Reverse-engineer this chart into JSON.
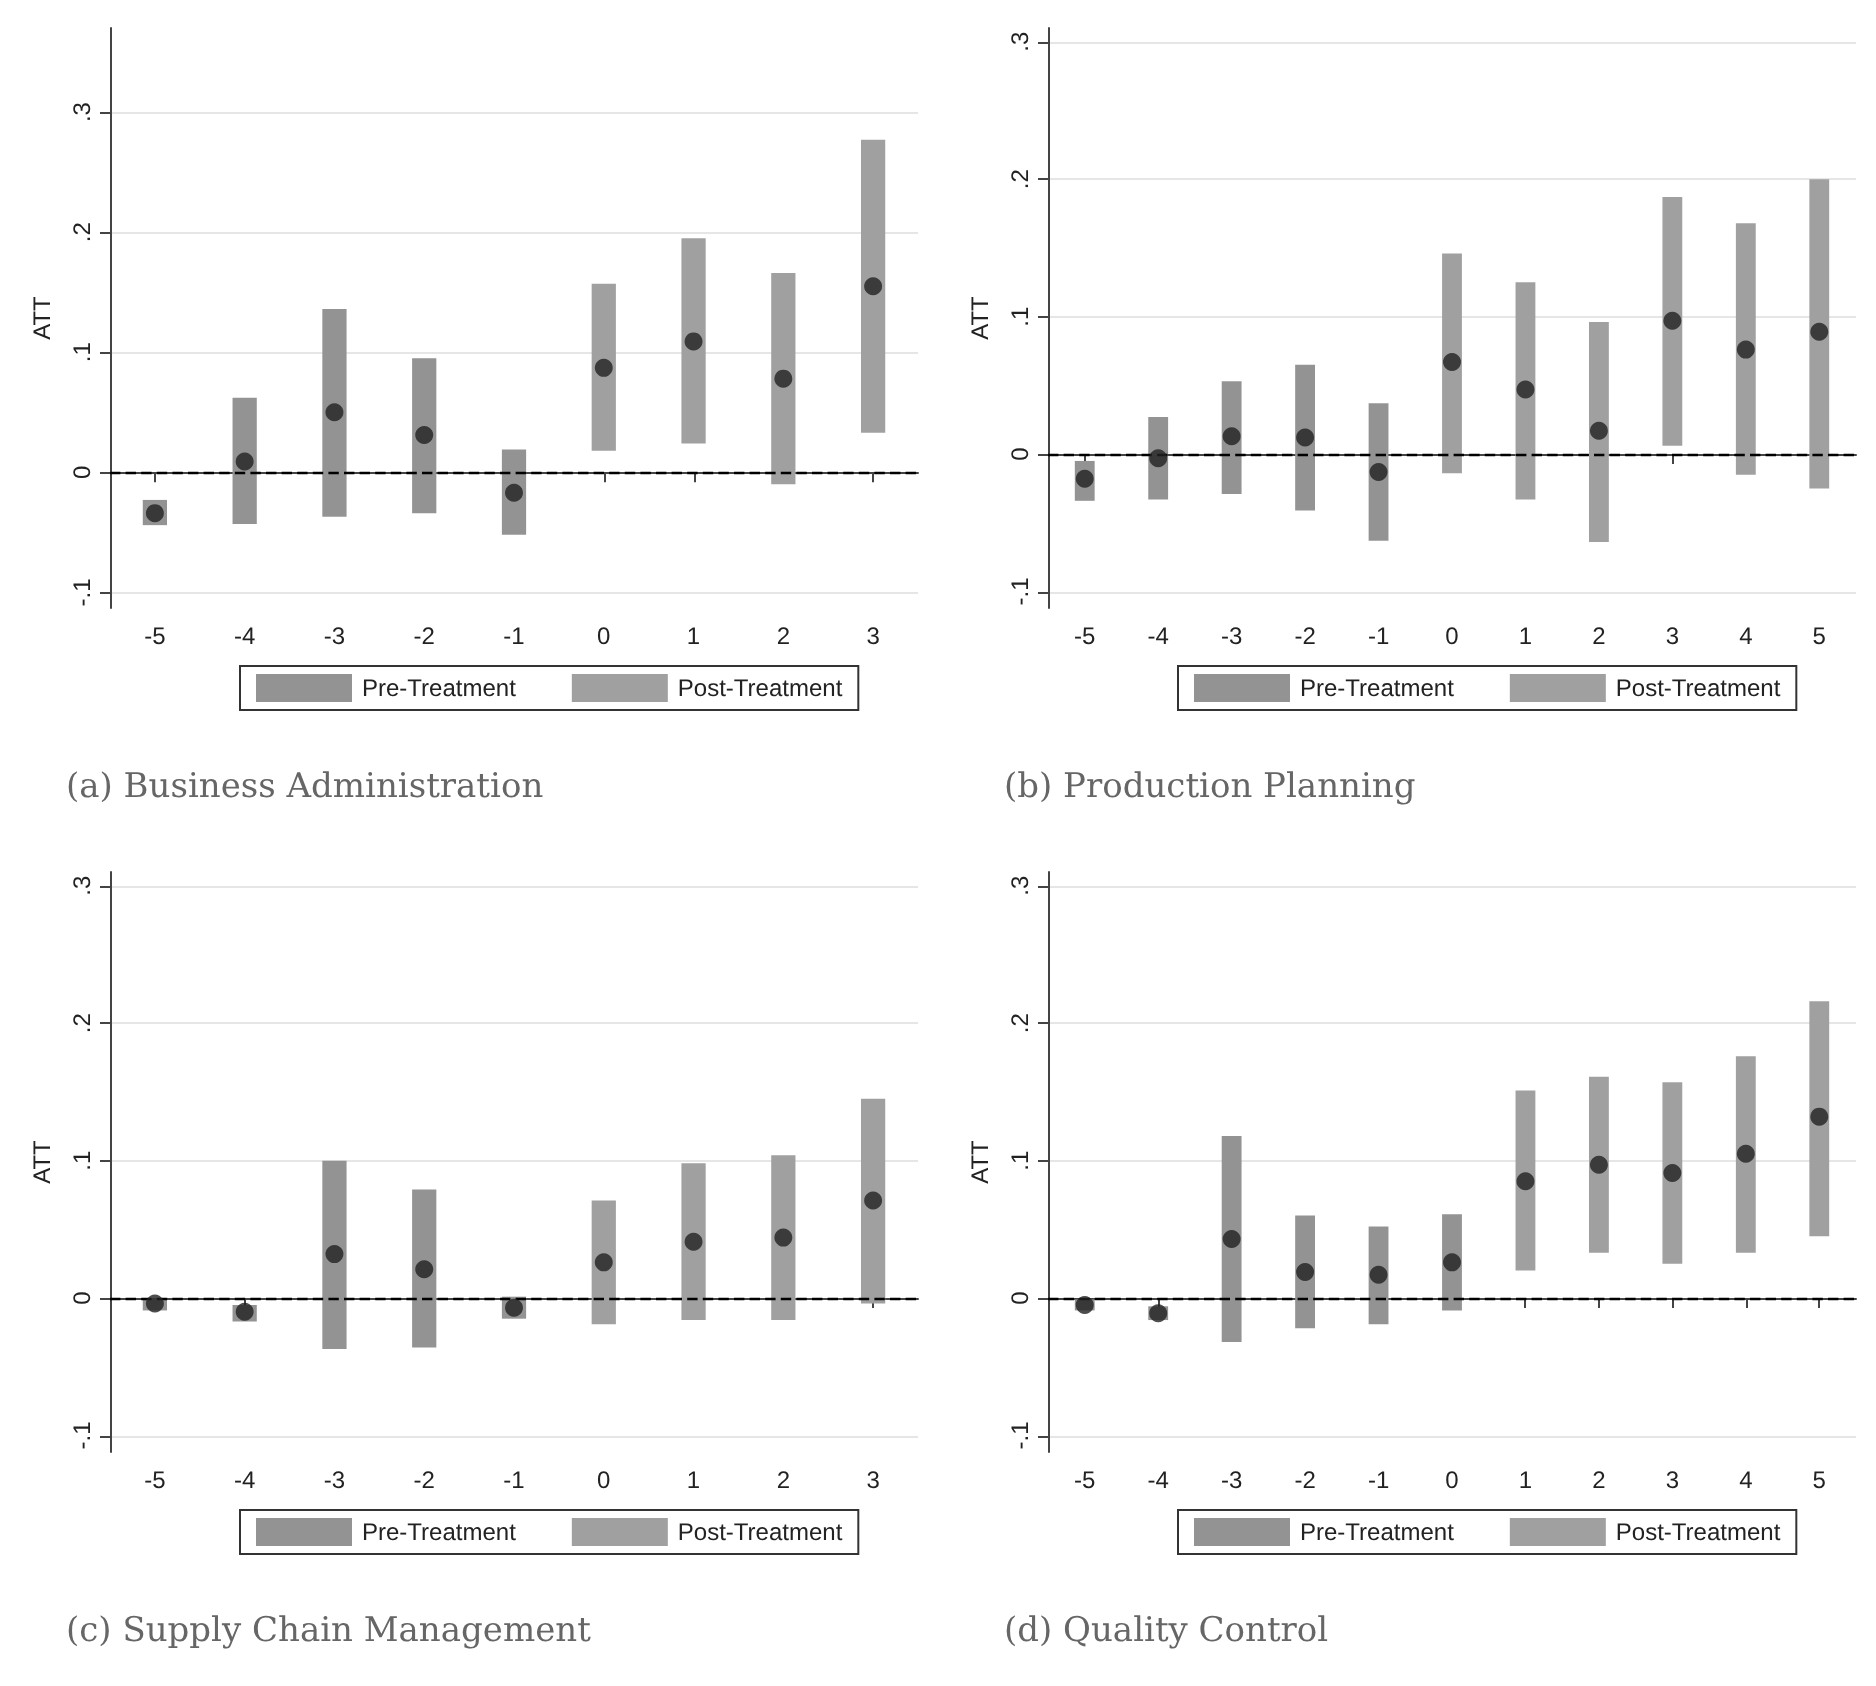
{
  "chart_data": [
    {
      "type": "bar",
      "title": "(a) Business Administration",
      "ylabel": "ATT",
      "categories": [
        "-5",
        "-4",
        "-3",
        "-2",
        "-1",
        "0",
        "1",
        "2",
        "3"
      ],
      "ylim": [
        -0.113,
        0.37
      ],
      "yticks": [
        {
          "value": -0.1,
          "label": "-.1"
        },
        {
          "value": 0,
          "label": "0"
        },
        {
          "value": 0.1,
          "label": ".1"
        },
        {
          "value": 0.2,
          "label": ".2"
        },
        {
          "value": 0.3,
          "label": ".3"
        }
      ],
      "grid": "y",
      "legend": "bottom",
      "ref_lines": [
        {
          "axis": "y",
          "value": 0,
          "color": "#000000",
          "line_style": "dashed"
        }
      ],
      "series": [
        {
          "name": "Pre-Treatment",
          "type": "bar",
          "color": "#939393",
          "base": [
            -0.044,
            -0.043,
            -0.037,
            -0.034,
            -0.052,
            null,
            null,
            null,
            null
          ],
          "values": [
            0.021,
            0.105,
            0.173,
            0.129,
            0.071,
            null,
            null,
            null,
            null
          ]
        },
        {
          "name": "Post-Treatment",
          "type": "bar",
          "color": "#a0a0a0",
          "base": [
            null,
            null,
            null,
            null,
            null,
            0.018,
            0.024,
            -0.01,
            0.033
          ],
          "values": [
            null,
            null,
            null,
            null,
            null,
            0.139,
            0.171,
            0.176,
            0.244
          ]
        },
        {
          "type": "scatter",
          "color": "#222222",
          "marker": "circle",
          "values": [
            -0.034,
            0.009,
            0.05,
            0.031,
            -0.017,
            0.087,
            0.109,
            0.078,
            0.155
          ]
        }
      ]
    },
    {
      "type": "bar",
      "title": "(b) Production Planning",
      "ylabel": "ATT",
      "categories": [
        "-5",
        "-4",
        "-3",
        "-2",
        "-1",
        "0",
        "1",
        "2",
        "3",
        "4",
        "5"
      ],
      "ylim": [
        -0.112,
        0.31
      ],
      "yticks": [
        {
          "value": -0.1,
          "label": "-.1"
        },
        {
          "value": 0,
          "label": "0"
        },
        {
          "value": 0.1,
          "label": ".1"
        },
        {
          "value": 0.2,
          "label": ".2"
        },
        {
          "value": 0.3,
          "label": ".3"
        }
      ],
      "grid": "y",
      "legend": "bottom",
      "ref_lines": [
        {
          "axis": "y",
          "value": 0,
          "color": "#000000",
          "line_style": "dashed"
        }
      ],
      "series": [
        {
          "name": "Pre-Treatment",
          "type": "bar",
          "color": "#939393",
          "base": [
            -0.034,
            -0.033,
            -0.029,
            -0.041,
            -0.063,
            null,
            null,
            null,
            null,
            null,
            null
          ],
          "values": [
            0.029,
            0.06,
            0.082,
            0.106,
            0.1,
            null,
            null,
            null,
            null,
            null,
            null
          ]
        },
        {
          "name": "Post-Treatment",
          "type": "bar",
          "color": "#a0a0a0",
          "base": [
            null,
            null,
            null,
            null,
            null,
            -0.014,
            -0.033,
            -0.064,
            0.006,
            -0.015,
            -0.025
          ],
          "values": [
            null,
            null,
            null,
            null,
            null,
            0.16,
            0.158,
            0.16,
            0.181,
            0.183,
            0.225
          ]
        },
        {
          "type": "scatter",
          "color": "#222222",
          "marker": "circle",
          "values": [
            -0.018,
            -0.003,
            0.013,
            0.012,
            -0.013,
            0.067,
            0.047,
            0.017,
            0.097,
            0.076,
            0.089
          ]
        }
      ]
    },
    {
      "type": "bar",
      "title": "(c) Supply Chain Management",
      "ylabel": "ATT",
      "categories": [
        "-5",
        "-4",
        "-3",
        "-2",
        "-1",
        "0",
        "1",
        "2",
        "3"
      ],
      "ylim": [
        -0.112,
        0.31
      ],
      "yticks": [
        {
          "value": -0.1,
          "label": "-.1"
        },
        {
          "value": 0,
          "label": "0"
        },
        {
          "value": 0.1,
          "label": ".1"
        },
        {
          "value": 0.2,
          "label": ".2"
        },
        {
          "value": 0.3,
          "label": ".3"
        }
      ],
      "grid": "y",
      "legend": "bottom",
      "ref_lines": [
        {
          "axis": "y",
          "value": 0,
          "color": "#000000",
          "line_style": "dashed"
        }
      ],
      "series": [
        {
          "name": "Pre-Treatment",
          "type": "bar",
          "color": "#939393",
          "base": [
            -0.009,
            -0.017,
            -0.037,
            -0.036,
            -0.015,
            null,
            null,
            null,
            null
          ],
          "values": [
            0.009,
            0.012,
            0.137,
            0.115,
            0.016,
            null,
            null,
            null,
            null
          ]
        },
        {
          "name": "Post-Treatment",
          "type": "bar",
          "color": "#a0a0a0",
          "base": [
            null,
            null,
            null,
            null,
            null,
            -0.019,
            -0.016,
            -0.016,
            -0.004
          ],
          "values": [
            null,
            null,
            null,
            null,
            null,
            0.09,
            0.114,
            0.12,
            0.149
          ]
        },
        {
          "type": "scatter",
          "color": "#222222",
          "marker": "circle",
          "values": [
            -0.004,
            -0.01,
            0.032,
            0.021,
            -0.007,
            0.026,
            0.041,
            0.044,
            0.071
          ]
        }
      ]
    },
    {
      "type": "bar",
      "title": "(d) Quality Control",
      "ylabel": "ATT",
      "categories": [
        "-5",
        "-4",
        "-3",
        "-2",
        "-1",
        "0",
        "1",
        "2",
        "3",
        "4",
        "5"
      ],
      "ylim": [
        -0.112,
        0.31
      ],
      "yticks": [
        {
          "value": -0.1,
          "label": "-.1"
        },
        {
          "value": 0,
          "label": "0"
        },
        {
          "value": 0.1,
          "label": ".1"
        },
        {
          "value": 0.2,
          "label": ".2"
        },
        {
          "value": 0.3,
          "label": ".3"
        }
      ],
      "grid": "y",
      "legend": "bottom",
      "ref_lines": [
        {
          "axis": "y",
          "value": 0,
          "color": "#000000",
          "line_style": "dashed"
        }
      ],
      "series": [
        {
          "name": "Pre-Treatment",
          "type": "bar",
          "color": "#939393",
          "base": [
            -0.009,
            -0.016,
            -0.032,
            -0.022,
            -0.019,
            -0.009,
            null,
            null,
            null,
            null,
            null
          ],
          "values": [
            0.008,
            0.01,
            0.15,
            0.082,
            0.071,
            0.07,
            null,
            null,
            null,
            null,
            null
          ]
        },
        {
          "name": "Post-Treatment",
          "type": "bar",
          "color": "#a0a0a0",
          "base": [
            null,
            null,
            null,
            null,
            null,
            null,
            0.02,
            0.033,
            0.025,
            0.033,
            0.045
          ],
          "values": [
            null,
            null,
            null,
            null,
            null,
            null,
            0.131,
            0.128,
            0.132,
            0.143,
            0.171
          ]
        },
        {
          "type": "scatter",
          "color": "#222222",
          "marker": "circle",
          "values": [
            -0.005,
            -0.011,
            0.043,
            0.019,
            0.017,
            0.026,
            0.085,
            0.097,
            0.091,
            0.105,
            0.132
          ]
        }
      ]
    }
  ]
}
